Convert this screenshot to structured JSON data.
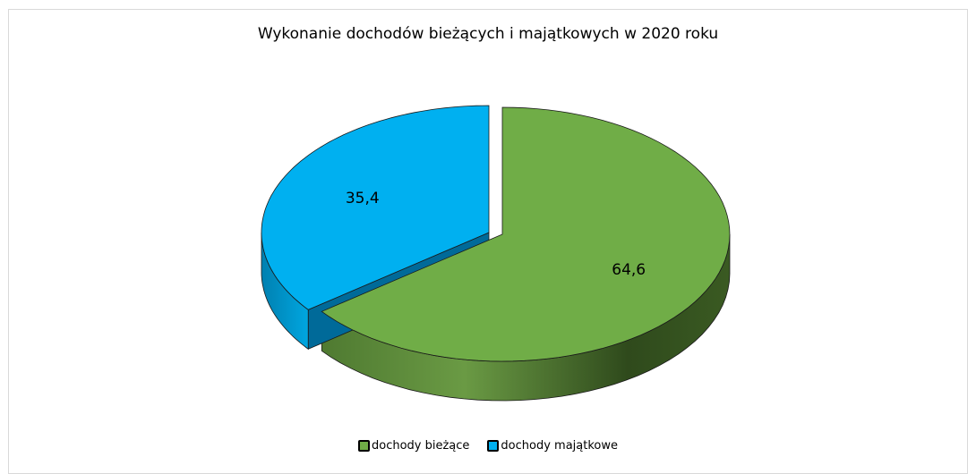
{
  "chart_data": {
    "type": "pie",
    "title": "Wykonanie dochodów bieżących i majątkowych w 2020 roku",
    "categories": [
      "dochody bieżące",
      "dochody majątkowe"
    ],
    "values": [
      64.6,
      35.4
    ],
    "data_labels": [
      "64,6",
      "35,4"
    ],
    "colors": [
      "#70ad47",
      "#00b0f0"
    ],
    "exploded": true,
    "three_d": true,
    "legend_position": "bottom"
  }
}
